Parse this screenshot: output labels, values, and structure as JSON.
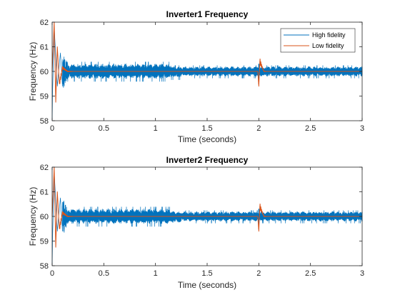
{
  "chart_data": [
    {
      "type": "line",
      "title": "Inverter1 Frequency",
      "xlabel": "Time (seconds)",
      "ylabel": "Frequency (Hz)",
      "xlim": [
        0,
        3
      ],
      "ylim": [
        58,
        62
      ],
      "xticks": [
        "0",
        "0.5",
        "1",
        "1.5",
        "2",
        "2.5",
        "3"
      ],
      "yticks": [
        "58",
        "59",
        "60",
        "61",
        "62"
      ],
      "legend_position": "top-right",
      "series": [
        {
          "name": "High fidelity",
          "color": "#0072BD",
          "style": "dense oscillation around 60 Hz",
          "points": [
            [
              0,
              58.0
            ],
            [
              0.005,
              59.3
            ],
            [
              0.02,
              61.8
            ],
            [
              0.05,
              59.4
            ],
            [
              0.08,
              60.75
            ],
            [
              0.1,
              59.4
            ],
            [
              0.5,
              60.35
            ],
            [
              0.5,
              59.7
            ],
            [
              1.0,
              60.35
            ],
            [
              1.0,
              59.7
            ],
            [
              1.1,
              60.4
            ],
            [
              1.15,
              59.65
            ],
            [
              1.2,
              60.25
            ],
            [
              2.0,
              60.25
            ],
            [
              2.0,
              59.5
            ],
            [
              3.0,
              60.25
            ],
            [
              3.0,
              59.75
            ]
          ]
        },
        {
          "name": "Low fidelity",
          "color": "#D95319",
          "style": "damped transient settling at 60 Hz",
          "points": [
            [
              0,
              60.0
            ],
            [
              0.02,
              62.0
            ],
            [
              0.035,
              58.75
            ],
            [
              0.05,
              61.0
            ],
            [
              0.07,
              59.5
            ],
            [
              0.1,
              60.15
            ],
            [
              0.15,
              60.0
            ],
            [
              1.0,
              60.0
            ],
            [
              1.99,
              60.0
            ],
            [
              2.0,
              59.4
            ],
            [
              2.01,
              60.4
            ],
            [
              2.05,
              60.0
            ],
            [
              3.0,
              60.0
            ]
          ]
        }
      ]
    },
    {
      "type": "line",
      "title": "Inverter2 Frequency",
      "xlabel": "Time (seconds)",
      "ylabel": "Frequency (Hz)",
      "xlim": [
        0,
        3
      ],
      "ylim": [
        58,
        62
      ],
      "xticks": [
        "0",
        "0.5",
        "1",
        "1.5",
        "2",
        "2.5",
        "3"
      ],
      "yticks": [
        "58",
        "59",
        "60",
        "61",
        "62"
      ],
      "series": [
        {
          "name": "High fidelity",
          "color": "#0072BD",
          "style": "dense oscillation around 60 Hz",
          "points": [
            [
              0,
              58.0
            ],
            [
              0.005,
              59.3
            ],
            [
              0.02,
              61.8
            ],
            [
              0.05,
              59.4
            ],
            [
              0.08,
              60.75
            ],
            [
              0.1,
              59.4
            ],
            [
              0.5,
              60.35
            ],
            [
              0.5,
              59.7
            ],
            [
              1.0,
              60.35
            ],
            [
              1.0,
              59.7
            ],
            [
              1.1,
              60.4
            ],
            [
              1.15,
              59.65
            ],
            [
              1.2,
              60.25
            ],
            [
              2.0,
              60.25
            ],
            [
              2.0,
              59.5
            ],
            [
              3.0,
              60.25
            ],
            [
              3.0,
              59.75
            ]
          ]
        },
        {
          "name": "Low fidelity",
          "color": "#D95319",
          "style": "damped transient settling at 60 Hz",
          "points": [
            [
              0,
              60.0
            ],
            [
              0.02,
              62.0
            ],
            [
              0.035,
              58.75
            ],
            [
              0.05,
              61.0
            ],
            [
              0.07,
              59.5
            ],
            [
              0.1,
              60.15
            ],
            [
              0.15,
              60.0
            ],
            [
              1.0,
              60.0
            ],
            [
              1.99,
              60.0
            ],
            [
              2.0,
              59.4
            ],
            [
              2.01,
              60.4
            ],
            [
              2.05,
              60.0
            ],
            [
              3.0,
              60.0
            ]
          ]
        }
      ]
    }
  ]
}
